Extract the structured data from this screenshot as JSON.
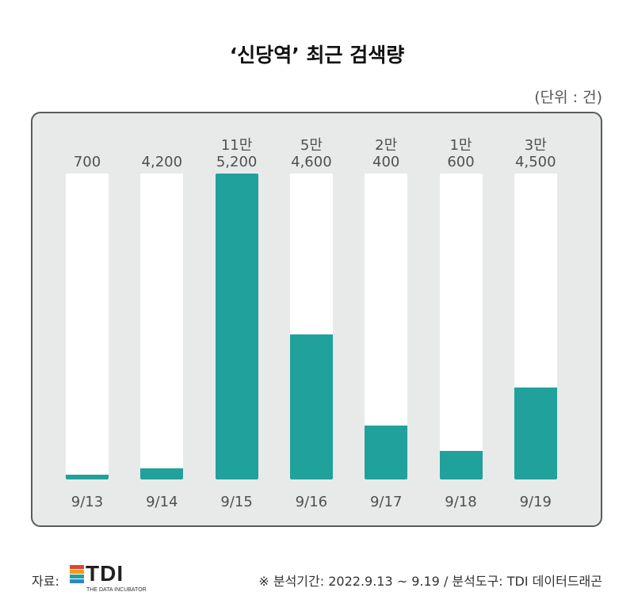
{
  "title": "‘신당역’ 최근 검색량",
  "unit": "(단위 : 건)",
  "colors": {
    "bar": "#21a19b",
    "track": "#ffffff",
    "panel": "#e8e9e9"
  },
  "chart_data": {
    "type": "bar",
    "title": "‘신당역’ 최근 검색량",
    "unit": "(단위 : 건)",
    "categories": [
      "9/13",
      "9/14",
      "9/15",
      "9/16",
      "9/17",
      "9/18",
      "9/19"
    ],
    "values": [
      700,
      4200,
      115200,
      54600,
      20400,
      10600,
      34500
    ],
    "value_labels": [
      {
        "top": "",
        "bottom": "700"
      },
      {
        "top": "",
        "bottom": "4,200"
      },
      {
        "top": "11만",
        "bottom": "5,200"
      },
      {
        "top": "5만",
        "bottom": "4,600"
      },
      {
        "top": "2만",
        "bottom": "400"
      },
      {
        "top": "1만",
        "bottom": "600"
      },
      {
        "top": "3만",
        "bottom": "4,500"
      }
    ],
    "ylim": [
      0,
      115200
    ],
    "legend": "none",
    "grid": false
  },
  "footer": {
    "source_label": "자료:",
    "logo_text": "TDI",
    "logo_subtitle": "THE DATA INCUBATOR",
    "logo_colors": [
      "#e8412e",
      "#f39a1e",
      "#21a19b",
      "#2f86c8"
    ],
    "note": "※ 분석기간: 2022.9.13 ~ 9.19 / 분석도구: TDI 데이터드래곤"
  }
}
